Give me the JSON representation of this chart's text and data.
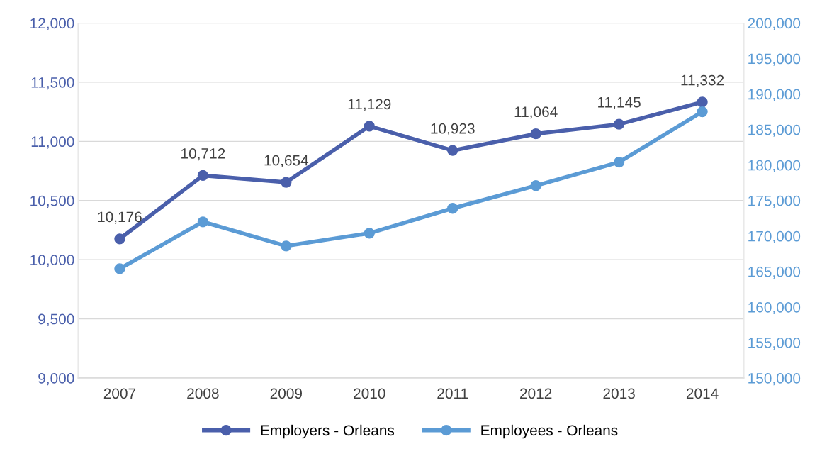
{
  "chart_data": {
    "type": "line",
    "categories": [
      "2007",
      "2008",
      "2009",
      "2010",
      "2011",
      "2012",
      "2013",
      "2014"
    ],
    "series": [
      {
        "name": "Employers - Orleans",
        "color": "#4a5fab",
        "values": [
          10176,
          10712,
          10654,
          11129,
          10923,
          11064,
          11145,
          11332
        ],
        "value_labels": [
          "10,176",
          "10,712",
          "10,654",
          "11,129",
          "10,923",
          "11,064",
          "11,145",
          "11,332"
        ]
      },
      {
        "name": "Employees - Orleans",
        "color": "#5b9bd5",
        "axis": "y2",
        "values": [
          165400,
          172000,
          168600,
          170400,
          173900,
          177100,
          180400,
          187500
        ]
      }
    ],
    "ylim": [
      9000,
      12000
    ],
    "yticks": [
      {
        "value": 9000,
        "label": "9,000"
      },
      {
        "value": 9500,
        "label": "9,500"
      },
      {
        "value": 10000,
        "label": "10,000"
      },
      {
        "value": 10500,
        "label": "10,500"
      },
      {
        "value": 11000,
        "label": "11,000"
      },
      {
        "value": 11500,
        "label": "11,500"
      },
      {
        "value": 12000,
        "label": "12,000"
      }
    ],
    "y2lim": [
      150000,
      200000
    ],
    "y2ticks": [
      {
        "value": 150000,
        "label": "150,000"
      },
      {
        "value": 155000,
        "label": "155,000"
      },
      {
        "value": 160000,
        "label": "160,000"
      },
      {
        "value": 165000,
        "label": "165,000"
      },
      {
        "value": 170000,
        "label": "170,000"
      },
      {
        "value": 175000,
        "label": "175,000"
      },
      {
        "value": 180000,
        "label": "180,000"
      },
      {
        "value": 185000,
        "label": "185,000"
      },
      {
        "value": 190000,
        "label": "190,000"
      },
      {
        "value": 195000,
        "label": "195,000"
      },
      {
        "value": 200000,
        "label": "200,000"
      }
    ],
    "grid": "y",
    "legend": "bottom",
    "marker": "circle",
    "line_style": "solid"
  }
}
